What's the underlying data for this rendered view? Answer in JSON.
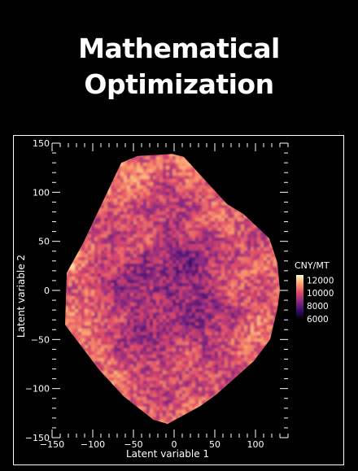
{
  "cover": {
    "title_line1": "Mathematical",
    "title_line2": "Optimization"
  },
  "colors": {
    "background": "#000000",
    "foreground": "#ffffff"
  },
  "chart_data": {
    "type": "heatmap",
    "title": "",
    "xlabel": "Latent variable 1",
    "ylabel": "Latent variable 2",
    "xlim": [
      -150,
      140
    ],
    "ylim": [
      -150,
      150
    ],
    "xticks": [
      -150,
      -100,
      -50,
      0,
      50,
      100
    ],
    "yticks": [
      -150,
      -100,
      -50,
      0,
      50,
      100,
      150
    ],
    "region_outline": [
      [
        -65,
        130
      ],
      [
        -45,
        137
      ],
      [
        -2,
        139
      ],
      [
        12,
        136
      ],
      [
        65,
        88
      ],
      [
        85,
        78
      ],
      [
        117,
        53
      ],
      [
        127,
        28
      ],
      [
        130,
        0
      ],
      [
        127,
        -18
      ],
      [
        118,
        -50
      ],
      [
        98,
        -72
      ],
      [
        52,
        -106
      ],
      [
        32,
        -118
      ],
      [
        -8,
        -136
      ],
      [
        -25,
        -132
      ],
      [
        -62,
        -108
      ],
      [
        -92,
        -81
      ],
      [
        -134,
        -35
      ],
      [
        -132,
        18
      ],
      [
        -112,
        48
      ]
    ],
    "colorbar": {
      "label": "CNY/MT",
      "ticks": [
        12000,
        10000,
        8000,
        6000
      ],
      "range": [
        6000,
        12800
      ],
      "colormap": [
        "#000004",
        "#3b0f70",
        "#8c2981",
        "#de4968",
        "#fe9f6d",
        "#fcfdbf"
      ]
    }
  }
}
